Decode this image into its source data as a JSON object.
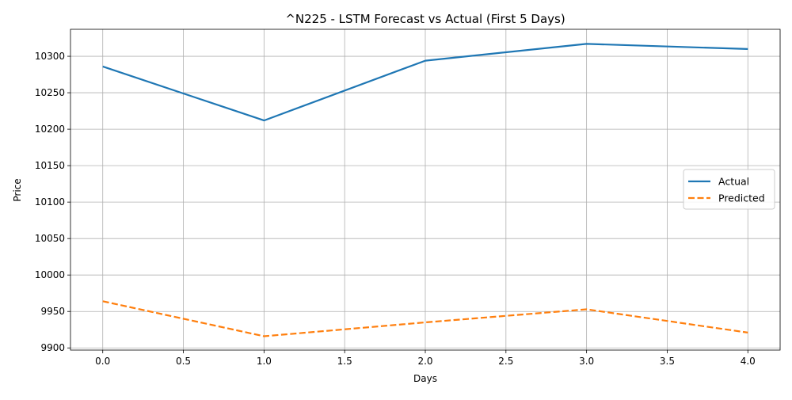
{
  "chart_data": {
    "type": "line",
    "title": "^N225 - LSTM Forecast vs Actual (First 5 Days)",
    "xlabel": "Days",
    "ylabel": "Price",
    "xlim": [
      -0.2,
      4.2
    ],
    "ylim": [
      9897,
      10337
    ],
    "x_ticks": [
      0.0,
      0.5,
      1.0,
      1.5,
      2.0,
      2.5,
      3.0,
      3.5,
      4.0
    ],
    "x_tick_labels": [
      "0.0",
      "0.5",
      "1.0",
      "1.5",
      "2.0",
      "2.5",
      "3.0",
      "3.5",
      "4.0"
    ],
    "y_ticks": [
      9900,
      9950,
      10000,
      10050,
      10100,
      10150,
      10200,
      10250,
      10300
    ],
    "y_tick_labels": [
      "9900",
      "9950",
      "10000",
      "10050",
      "10100",
      "10150",
      "10200",
      "10250",
      "10300"
    ],
    "grid": true,
    "legend_position": "center-right",
    "x": [
      0,
      1,
      2,
      3,
      4
    ],
    "series": [
      {
        "name": "Actual",
        "values": [
          10286,
          10212,
          10294,
          10317,
          10310
        ],
        "color": "#1f77b4",
        "style": "solid"
      },
      {
        "name": "Predicted",
        "values": [
          9964,
          9916,
          9935,
          9953,
          9921
        ],
        "color": "#ff7f0e",
        "style": "dashed"
      }
    ]
  }
}
